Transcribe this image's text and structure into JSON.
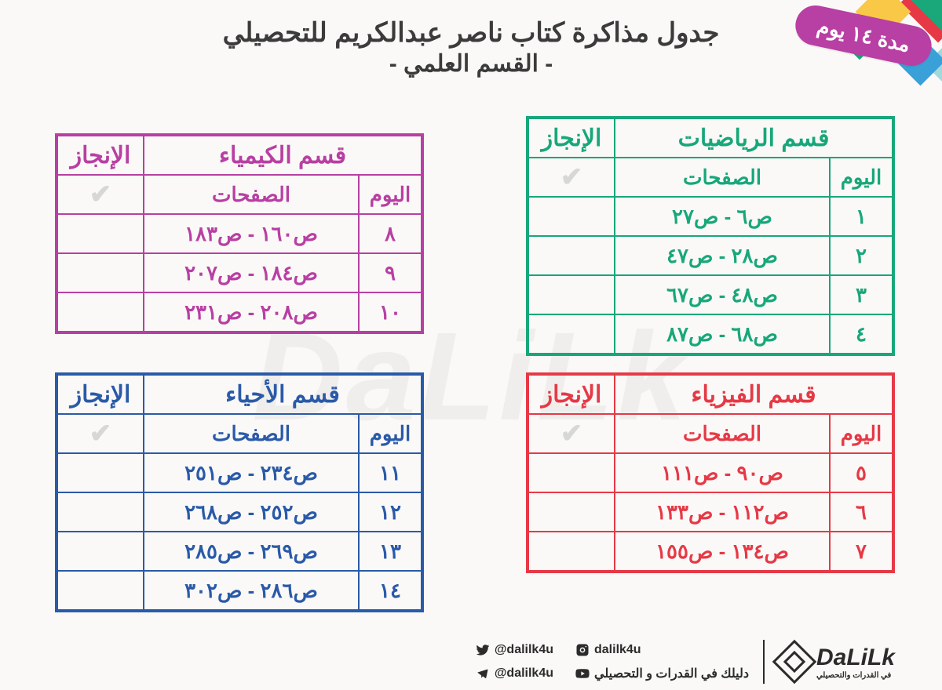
{
  "header": {
    "line1": "جدول مذاكرة كتاب ناصر عبدالكريم للتحصيلي",
    "line2": "- القسم العلمي -",
    "badge": "مدة ١٤ يوم"
  },
  "labels": {
    "day": "اليوم",
    "pages": "الصفحات",
    "done": "الإنجاز"
  },
  "sections": {
    "math": {
      "title": "قسم الرياضيات",
      "color": "#18a77a",
      "rows": [
        {
          "day": "١",
          "pages": "ص٦ - ص٢٧"
        },
        {
          "day": "٢",
          "pages": "ص٢٨ - ص٤٧"
        },
        {
          "day": "٣",
          "pages": "ص٤٨ - ص٦٧"
        },
        {
          "day": "٤",
          "pages": "ص٦٨ - ص٨٧"
        }
      ]
    },
    "physics": {
      "title": "قسم الفيزياء",
      "color": "#e63946",
      "rows": [
        {
          "day": "٥",
          "pages": "ص٩٠ - ص١١١"
        },
        {
          "day": "٦",
          "pages": "ص١١٢ - ص١٣٣"
        },
        {
          "day": "٧",
          "pages": "ص١٣٤ - ص١٥٥"
        }
      ]
    },
    "chemistry": {
      "title": "قسم الكيمياء",
      "color": "#b83fa3",
      "rows": [
        {
          "day": "٨",
          "pages": "ص١٦٠ - ص١٨٣"
        },
        {
          "day": "٩",
          "pages": "ص١٨٤ - ص٢٠٧"
        },
        {
          "day": "١٠",
          "pages": "ص٢٠٨ - ص٢٣١"
        }
      ]
    },
    "biology": {
      "title": "قسم الأحياء",
      "color": "#2a5aa8",
      "rows": [
        {
          "day": "١١",
          "pages": "ص٢٣٤ - ص٢٥١"
        },
        {
          "day": "١٢",
          "pages": "ص٢٥٢ - ص٢٦٨"
        },
        {
          "day": "١٣",
          "pages": "ص٢٦٩ - ص٢٨٥"
        },
        {
          "day": "١٤",
          "pages": "ص٢٨٦ - ص٣٠٢"
        }
      ]
    }
  },
  "footer": {
    "logo_text": "DaLiLk",
    "logo_sub": "في القدرات والتحصيلي",
    "socials": {
      "twitter": "@dalilk4u",
      "instagram": "dalilk4u",
      "telegram": "@dalilk4u",
      "youtube": "دليلك في القدرات و التحصيلي"
    }
  },
  "watermark": "DaLiLk"
}
